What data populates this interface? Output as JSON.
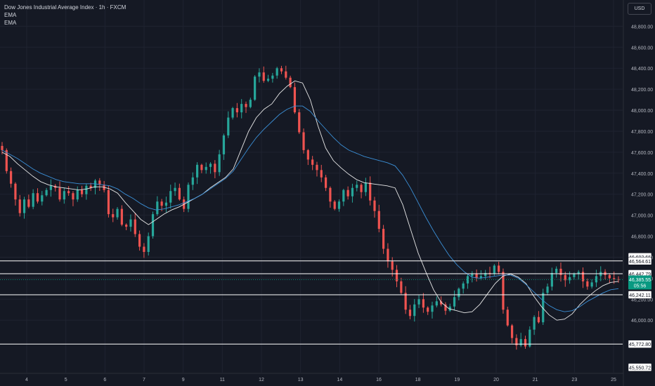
{
  "header": {
    "title": "Dow Jones Industrial Average Index · 1h · FXCM",
    "indicators": [
      "EMA",
      "EMA"
    ],
    "currency_button": "USD"
  },
  "colors": {
    "background": "#151924",
    "grid": "#1f2330",
    "up": "#26a69a",
    "down": "#ef5350",
    "ema_fast": "#e8e8e8",
    "ema_slow": "#3b8fd6",
    "level_line": "#ffffff",
    "price_badge": "#089981"
  },
  "chart_data": {
    "type": "candlestick",
    "title": "Dow Jones Industrial Average Index · 1h · FXCM",
    "ylim": [
      45500,
      49050
    ],
    "y_ticks": [
      46000,
      46200,
      46400,
      46600,
      46800,
      47000,
      47200,
      47400,
      47600,
      47800,
      48000,
      48200,
      48400,
      48600,
      48800
    ],
    "y_tick_labels": [
      "46,000.00",
      "46,200.00",
      "46,400.00",
      "46,600.00",
      "46,800.00",
      "47,000.00",
      "47,200.00",
      "47,400.00",
      "47,600.00",
      "47,800.00",
      "48,000.00",
      "48,200.00",
      "48,400.00",
      "48,600.00",
      "48,800.00"
    ],
    "x_labels": [
      "4",
      "5",
      "6",
      "7",
      "9",
      "11",
      "12",
      "13",
      "14",
      "16",
      "18",
      "19",
      "20",
      "21",
      "23",
      "25"
    ],
    "grid": true,
    "series": [
      {
        "name": "Price",
        "type": "line-approx",
        "values": [
          47620,
          47420,
          47300,
          47150,
          47020,
          47150,
          47080,
          47210,
          47130,
          47190,
          47240,
          47280,
          47260,
          47150,
          47230,
          47210,
          47150,
          47240,
          47200,
          47280,
          47260,
          47330,
          47290,
          47240,
          47010,
          46980,
          47060,
          46910,
          46890,
          46960,
          46820,
          46700,
          46650,
          46800,
          47010,
          47130,
          47090,
          47120,
          47230,
          47260,
          47150,
          47060,
          47290,
          47360,
          47480,
          47430,
          47460,
          47490,
          47410,
          47580,
          47760,
          47930,
          48020,
          47980,
          48060,
          48030,
          48100,
          48320,
          48360,
          48280,
          48300,
          48330,
          48400,
          48370,
          48310,
          48220,
          47980,
          47790,
          47620,
          47530,
          47480,
          47430,
          47360,
          47260,
          47130,
          47060,
          47130,
          47240,
          47180,
          47260,
          47290,
          47220,
          47310,
          47140,
          47040,
          46870,
          46680,
          46560,
          46480,
          46370,
          46260,
          46100,
          46040,
          46150,
          46200,
          46120,
          46080,
          46140,
          46180,
          46150,
          46090,
          46130,
          46220,
          46300,
          46350,
          46420,
          46440,
          46400,
          46420,
          46450,
          46440,
          46520,
          46460,
          46100,
          45950,
          45830,
          45760,
          45820,
          45750,
          45910,
          46030,
          45980,
          46260,
          46320,
          46450,
          46490,
          46430,
          46380,
          46410,
          46440,
          46460,
          46370,
          46320,
          46360,
          46420,
          46460,
          46430,
          46400,
          46390,
          46385
        ]
      },
      {
        "name": "EMA",
        "type": "line-approx",
        "values": [
          47600,
          47560,
          47490,
          47430,
          47370,
          47320,
          47290,
          47270,
          47260,
          47250,
          47240,
          47250,
          47270,
          47270,
          47250,
          47210,
          47120,
          47040,
          46960,
          46910,
          46960,
          47010,
          47050,
          47080,
          47120,
          47160,
          47200,
          47260,
          47310,
          47360,
          47440,
          47620,
          47800,
          47930,
          48010,
          48060,
          48160,
          48230,
          48280,
          48260,
          48100,
          47850,
          47640,
          47520,
          47450,
          47390,
          47340,
          47310,
          47300,
          47290,
          47280,
          47260,
          47100,
          46870,
          46640,
          46460,
          46290,
          46170,
          46110,
          46090,
          46070,
          46080,
          46150,
          46250,
          46350,
          46420,
          46440,
          46410,
          46350,
          46230,
          46130,
          46050,
          46000,
          46010,
          46060,
          46150,
          46220,
          46280,
          46330,
          46360,
          46370
        ]
      },
      {
        "name": "EMA",
        "type": "line-approx",
        "values": [
          47620,
          47580,
          47540,
          47490,
          47440,
          47400,
          47370,
          47340,
          47320,
          47310,
          47300,
          47300,
          47300,
          47290,
          47280,
          47250,
          47200,
          47160,
          47110,
          47070,
          47050,
          47060,
          47080,
          47100,
          47130,
          47160,
          47200,
          47250,
          47300,
          47350,
          47420,
          47530,
          47640,
          47740,
          47820,
          47890,
          47960,
          48010,
          48040,
          48040,
          47990,
          47900,
          47820,
          47740,
          47670,
          47620,
          47590,
          47560,
          47540,
          47520,
          47500,
          47470,
          47380,
          47260,
          47120,
          46980,
          46850,
          46730,
          46620,
          46530,
          46460,
          46410,
          46400,
          46410,
          46420,
          46430,
          46430,
          46400,
          46340,
          46270,
          46200,
          46140,
          46100,
          46080,
          46090,
          46130,
          46180,
          46220,
          46260,
          46290,
          46300
        ]
      }
    ],
    "levels": [
      {
        "value": 46603.66,
        "label": "46,603.66",
        "line": false
      },
      {
        "value": 46564.61,
        "label": "46,564.61",
        "line": true
      },
      {
        "value": 46442.79,
        "label": "46,442.79",
        "line": true
      },
      {
        "value": 46242.11,
        "label": "46,242.11",
        "line": true
      },
      {
        "value": 45772.8,
        "label": "45,772.80",
        "line": true
      },
      {
        "value": 45550.72,
        "label": "45,550.72",
        "line": false
      }
    ],
    "last_price": {
      "value": 46385.55,
      "label": "46,385.55",
      "countdown": "05:56"
    }
  }
}
